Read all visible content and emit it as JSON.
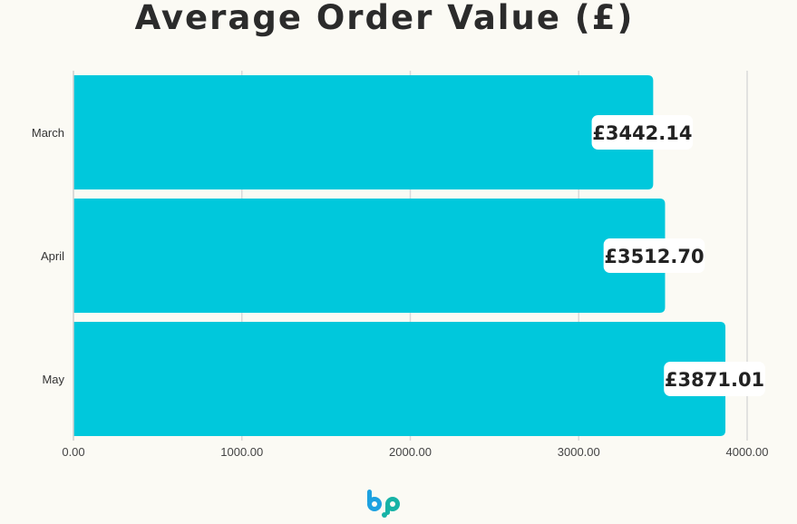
{
  "chart_data": {
    "type": "bar",
    "orientation": "horizontal",
    "title": "Average Order Value (£)",
    "categories": [
      "March",
      "April",
      "May"
    ],
    "values": [
      3442.14,
      3512.7,
      3871.01
    ],
    "data_labels": [
      "£3442.14",
      "£3512.70",
      "£3871.01"
    ],
    "xlim": [
      0,
      4000
    ],
    "x_ticks": [
      "0.00",
      "1000.00",
      "2000.00",
      "3000.00",
      "4000.00"
    ],
    "grid": true,
    "bar_color": "#00c8dc"
  },
  "logo": {
    "name": "bp-logo-icon",
    "colors": [
      "#1da1e0",
      "#17b3a6"
    ]
  }
}
